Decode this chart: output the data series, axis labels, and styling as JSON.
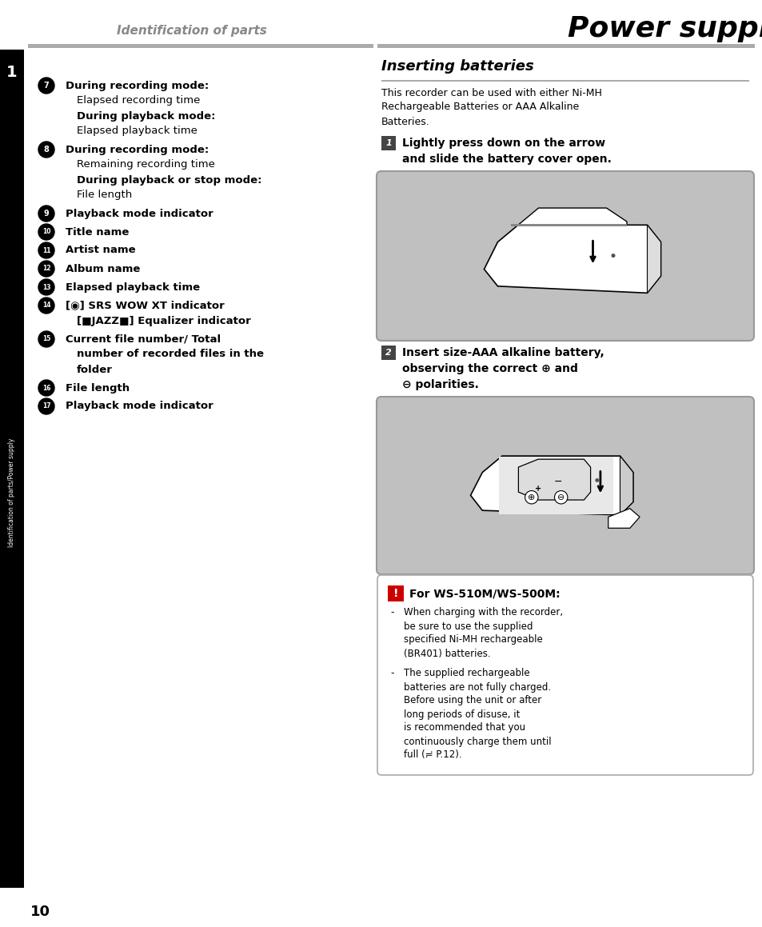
{
  "page_width": 9.54,
  "page_height": 11.59,
  "bg_color": "#ffffff",
  "header_left": "Identification of parts",
  "header_right": "Power supply",
  "sidebar_number": "1",
  "sidebar_text": "Identification of parts/Power supply",
  "page_number": "10",
  "left_items": [
    {
      "num": "7",
      "lines": [
        {
          "text": "During recording mode:",
          "bold": true
        },
        {
          "text": "Elapsed recording time",
          "bold": false
        },
        {
          "text": "During playback mode:",
          "bold": true
        },
        {
          "text": "Elapsed playback time",
          "bold": false
        }
      ]
    },
    {
      "num": "8",
      "lines": [
        {
          "text": "During recording mode:",
          "bold": true
        },
        {
          "text": "Remaining recording time",
          "bold": false
        },
        {
          "text": "During playback or stop mode:",
          "bold": true
        },
        {
          "text": "File length",
          "bold": false
        }
      ]
    },
    {
      "num": "9",
      "lines": [
        {
          "text": "Playback mode indicator",
          "bold": true
        }
      ]
    },
    {
      "num": "10",
      "lines": [
        {
          "text": "Title name",
          "bold": true
        }
      ]
    },
    {
      "num": "11",
      "lines": [
        {
          "text": "Artist name",
          "bold": true
        }
      ]
    },
    {
      "num": "12",
      "lines": [
        {
          "text": "Album name",
          "bold": true
        }
      ]
    },
    {
      "num": "13",
      "lines": [
        {
          "text": "Elapsed playback time",
          "bold": true
        }
      ]
    },
    {
      "num": "14",
      "lines": [
        {
          "text": "[◉] SRS WOW XT indicator",
          "bold": true
        },
        {
          "text": "[■JAZZ■] Equalizer indicator",
          "bold": true
        }
      ]
    },
    {
      "num": "15",
      "lines": [
        {
          "text": "Current file number/ Total",
          "bold": true
        },
        {
          "text": "number of recorded files in the",
          "bold": true
        },
        {
          "text": "folder",
          "bold": true
        }
      ]
    },
    {
      "num": "16",
      "lines": [
        {
          "text": "File length",
          "bold": true
        }
      ]
    },
    {
      "num": "17",
      "lines": [
        {
          "text": "Playback mode indicator",
          "bold": true
        }
      ]
    }
  ],
  "right_title": "Inserting batteries",
  "right_intro": [
    "This recorder can be used with either Ni-MH",
    "Rechargeable Batteries or AAA Alkaline",
    "Batteries."
  ],
  "step1_text": [
    "Lightly press down on the arrow",
    "and slide the battery cover open."
  ],
  "step2_text": [
    "Insert size-AAA alkaline battery,",
    "observing the correct ⊕ and",
    "⊖ polarities."
  ],
  "note_title": "For WS-510M/WS-500M:",
  "note_bullets": [
    [
      "When charging with the recorder,",
      "be sure to use the supplied",
      "specified Ni-MH rechargeable",
      "(BR401) batteries."
    ],
    [
      "The supplied rechargeable",
      "batteries are not fully charged.",
      "Before using the unit or after",
      "long periods of disuse, it",
      "is recommended that you",
      "continuously charge them until",
      "full (≓ P.12)."
    ]
  ],
  "img_bg": "#c0c0c0",
  "note_bg": "#ffffff",
  "note_border": "#aaaaaa",
  "step_box_bg": "#444444",
  "line_color": "#aaaaaa"
}
